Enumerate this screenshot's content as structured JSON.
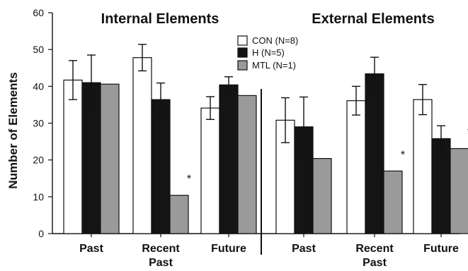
{
  "chart_data": {
    "type": "bar",
    "title": "",
    "xlabel": "",
    "ylabel": "Number of Elements",
    "ylim": [
      0,
      60
    ],
    "yticks": [
      "0",
      "10",
      "20",
      "30",
      "40",
      "50",
      "60"
    ],
    "grid": false,
    "legend": {
      "placement": "top-center",
      "entries": [
        "CON (N=8)",
        "H (N=5)",
        "MTL (N=1)"
      ]
    },
    "series_colors": {
      "CON (N=8)": "#ffffff",
      "H (N=5)": "#141414",
      "MTL (N=1)": "#9a9a9a"
    },
    "bar_outline_color": "#111111",
    "panels": [
      {
        "title": "Internal Elements",
        "categories": [
          "Past",
          "Recent Past",
          "Future"
        ],
        "series": [
          {
            "name": "CON (N=8)",
            "values": [
              41.7,
              47.8,
              34.1
            ],
            "errors": [
              5.3,
              3.6,
              3.1
            ]
          },
          {
            "name": "H (N=5)",
            "values": [
              41.0,
              36.4,
              40.4
            ],
            "errors": [
              7.5,
              4.5,
              2.2
            ]
          },
          {
            "name": "MTL (N=1)",
            "values": [
              40.6,
              10.4,
              37.5
            ],
            "errors": [
              0,
              0,
              0
            ]
          }
        ],
        "annotations": [
          {
            "category": "Recent Past",
            "series": "MTL (N=1)",
            "text": "*"
          }
        ]
      },
      {
        "title": "External Elements",
        "categories": [
          "Past",
          "Recent Past",
          "Future"
        ],
        "series": [
          {
            "name": "CON (N=8)",
            "values": [
              30.8,
              36.1,
              36.4
            ],
            "errors": [
              6.1,
              3.9,
              4.1
            ]
          },
          {
            "name": "H (N=5)",
            "values": [
              29.0,
              43.4,
              25.8
            ],
            "errors": [
              8.1,
              4.5,
              3.5
            ]
          },
          {
            "name": "MTL (N=1)",
            "values": [
              20.4,
              17.0,
              23.1
            ],
            "errors": [
              0,
              0,
              0
            ]
          }
        ],
        "annotations": [
          {
            "category": "Recent Past",
            "series": "MTL (N=1)",
            "text": "*"
          },
          {
            "category": "Future",
            "series": "MTL (N=1)",
            "text": "*"
          }
        ]
      }
    ]
  }
}
